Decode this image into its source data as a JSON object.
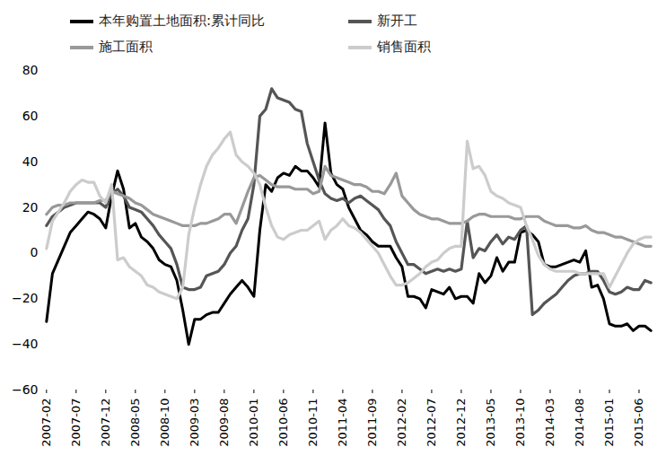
{
  "chart_data": {
    "type": "line",
    "legend": "top",
    "grid": false,
    "categories": [
      "2007-02",
      null,
      null,
      null,
      null,
      "2007-07",
      null,
      null,
      null,
      null,
      "2007-12",
      null,
      null,
      null,
      null,
      "2008-05",
      null,
      null,
      null,
      null,
      "2008-10",
      null,
      null,
      null,
      null,
      "2009-03",
      null,
      null,
      null,
      null,
      "2009-08",
      null,
      null,
      null,
      null,
      "2010-01",
      null,
      null,
      null,
      null,
      "2010-06",
      null,
      null,
      null,
      null,
      "2010-11",
      null,
      null,
      null,
      null,
      "2011-04",
      null,
      null,
      null,
      null,
      "2011-09",
      null,
      null,
      null,
      null,
      "2012-02",
      null,
      null,
      null,
      null,
      "2012-07",
      null,
      null,
      null,
      null,
      "2012-12",
      null,
      null,
      null,
      null,
      "2013-05",
      null,
      null,
      null,
      null,
      "2013-10",
      null,
      null,
      null,
      null,
      "2014-03",
      null,
      null,
      null,
      null,
      "2014-08",
      null,
      null,
      null,
      null,
      "2015-01",
      null,
      null,
      null,
      null,
      "2015-06",
      null,
      null
    ],
    "ylim": [
      -60,
      80
    ],
    "yticks": [
      -60,
      -40,
      -20,
      0,
      20,
      40,
      60,
      80
    ],
    "series": [
      {
        "name": "本年购置土地面积:累计同比",
        "color": "#000000",
        "values": [
          -30,
          -9,
          -3,
          3,
          9,
          12,
          15,
          18,
          17,
          15,
          11,
          25,
          36,
          28,
          11,
          13,
          7,
          5,
          2,
          -3,
          -5,
          -6,
          -12,
          -25,
          -40,
          -29,
          -29,
          -27,
          -26,
          -26,
          -22,
          -18,
          -15,
          -12,
          -15,
          -19,
          10,
          30,
          27,
          33,
          35,
          34,
          38,
          36,
          36,
          33,
          29,
          57,
          35,
          30,
          28,
          20,
          15,
          10,
          8,
          5,
          3,
          3,
          3,
          -2,
          -6,
          -19,
          -19,
          -20,
          -24,
          -16,
          -17,
          -18,
          -15,
          -20,
          -19,
          -19,
          -22,
          -9,
          -13,
          -10,
          -2,
          -8,
          -4,
          -4,
          9,
          10,
          8,
          5,
          -5,
          -6,
          -6,
          -5,
          -4,
          -3,
          -4,
          1,
          -15,
          -14,
          -20,
          -31,
          -32,
          -32,
          -31,
          -34,
          -32,
          -32,
          -34
        ]
      },
      {
        "name": "新开工",
        "color": "#555555",
        "values": [
          12,
          16,
          18,
          20,
          21,
          22,
          22,
          22,
          22,
          22,
          20,
          26,
          28,
          25,
          20,
          19,
          18,
          15,
          12,
          8,
          5,
          2,
          -5,
          -15,
          -16,
          -16,
          -15,
          -10,
          -9,
          -8,
          -5,
          0,
          3,
          10,
          15,
          30,
          60,
          63,
          72,
          68,
          67,
          66,
          63,
          62,
          48,
          40,
          32,
          26,
          24,
          23,
          24,
          22,
          24,
          25,
          23,
          21,
          19,
          15,
          12,
          5,
          0,
          -5,
          -5,
          -7,
          -9,
          -8,
          -7,
          -8,
          -7,
          -8,
          -7,
          14,
          -2,
          2,
          1,
          5,
          8,
          4,
          7,
          6,
          10,
          12,
          -27,
          -25,
          -22,
          -20,
          -18,
          -15,
          -12,
          -10,
          -9,
          -9,
          -8,
          -8,
          -12,
          -17,
          -18,
          -17,
          -15,
          -16,
          -16,
          -12,
          -13
        ]
      },
      {
        "name": "施工面积",
        "color": "#999999",
        "values": [
          17,
          20,
          21,
          21,
          22,
          22,
          22,
          22,
          22,
          23,
          23,
          27,
          26,
          25,
          24,
          22,
          21,
          19,
          17,
          16,
          15,
          14,
          13,
          12,
          12,
          12,
          13,
          13,
          14,
          15,
          17,
          17,
          13,
          20,
          27,
          33,
          34,
          32,
          30,
          29,
          29,
          29,
          28,
          28,
          28,
          26,
          27,
          38,
          34,
          33,
          32,
          31,
          30,
          30,
          29,
          27,
          27,
          26,
          30,
          35,
          25,
          22,
          19,
          17,
          16,
          15,
          15,
          14,
          13,
          13,
          13,
          14,
          16,
          17,
          17,
          16,
          16,
          16,
          16,
          15,
          15,
          16,
          16,
          16,
          14,
          13,
          12,
          12,
          12,
          11,
          11,
          12,
          10,
          9,
          9,
          8,
          7,
          7,
          6,
          5,
          4,
          3,
          3
        ]
      },
      {
        "name": "销售面积",
        "color": "#cccccc",
        "values": [
          2,
          14,
          18,
          22,
          27,
          30,
          32,
          31,
          31,
          25,
          22,
          30,
          -3,
          -2,
          -6,
          -8,
          -10,
          -14,
          -15,
          -17,
          -18,
          -19,
          -20,
          -15,
          8,
          20,
          30,
          38,
          43,
          46,
          50,
          53,
          43,
          40,
          38,
          35,
          30,
          20,
          12,
          7,
          6,
          8,
          9,
          10,
          10,
          12,
          14,
          6,
          10,
          12,
          15,
          12,
          11,
          9,
          6,
          3,
          0,
          -5,
          -10,
          -14,
          -14,
          -13,
          -11,
          -9,
          -6,
          -4,
          -3,
          0,
          2,
          3,
          3,
          49,
          37,
          38,
          34,
          27,
          25,
          24,
          22,
          21,
          20,
          12,
          6,
          -1,
          -5,
          -7,
          -8,
          -8,
          -8,
          -8,
          -9,
          -9,
          -9,
          -9,
          -9,
          -15,
          -10,
          -5,
          0,
          4,
          6,
          7,
          7
        ]
      }
    ]
  }
}
